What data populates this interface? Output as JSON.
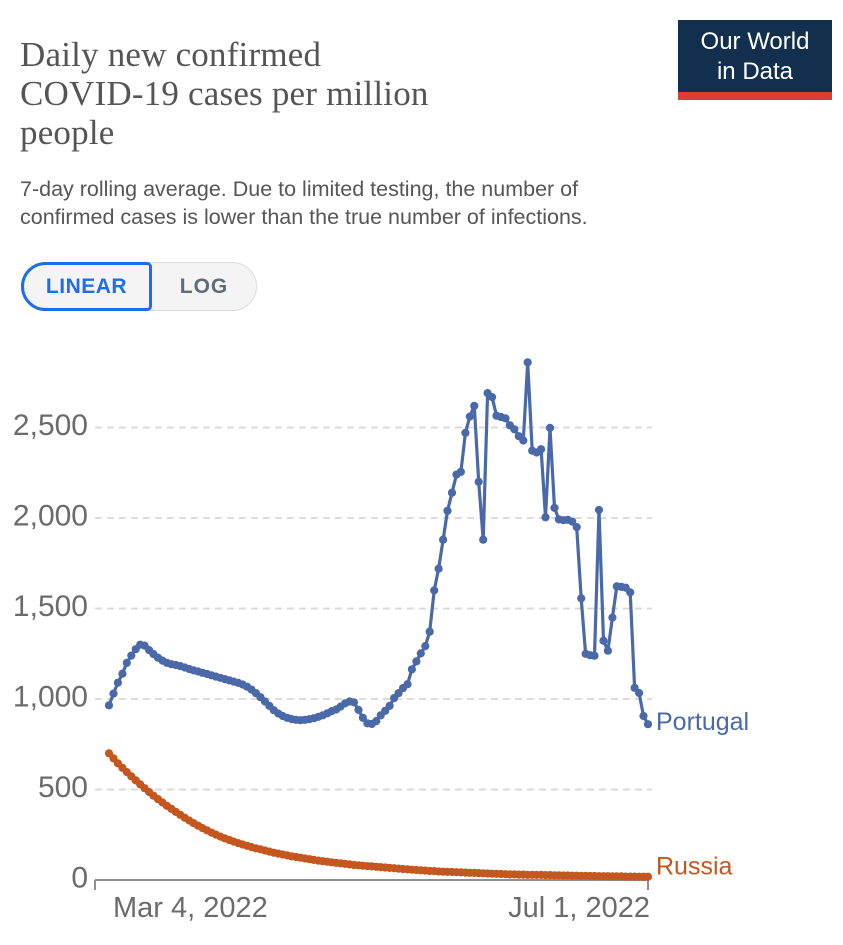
{
  "header": {
    "title_lines": [
      "Daily new confirmed",
      "COVID-19 cases per million",
      "people"
    ],
    "subtitle_lines": [
      "7-day rolling average. Due to limited testing, the number of",
      "confirmed cases is lower than the true number of infections."
    ],
    "logo": {
      "line1": "Our World",
      "line2": "in Data",
      "bg_color": "#12304e",
      "stripe_color": "#dc3e32"
    }
  },
  "toggle": {
    "linear_label": "LINEAR",
    "log_label": "LOG",
    "active": "LINEAR",
    "active_color": "#1f6de8",
    "inactive_text_color": "#5f6b7a"
  },
  "chart_data": {
    "type": "line",
    "title": "Daily new confirmed COVID-19 cases per million people",
    "subtitle": "7-day rolling average. Due to limited testing, the number of confirmed cases is lower than the true number of infections.",
    "frequency": "daily",
    "x_start": "Mar 4, 2022",
    "x_end": "Jul 1, 2022",
    "x_tick_labels": [
      "Mar 4, 2022",
      "Jul 1, 2022"
    ],
    "y_ticks": [
      0,
      500,
      1000,
      1500,
      2000,
      2500
    ],
    "y_tick_labels": [
      "0",
      "500",
      "1,000",
      "1,500",
      "2,000",
      "2,500"
    ],
    "ylim": [
      0,
      2900
    ],
    "grid": "horizontal-dashed",
    "grid_color": "#d7d7d7",
    "axis_color": "#8f8f8f",
    "tick_label_color": "#6b6b6b",
    "legend_position": "line-end-labels",
    "series": [
      {
        "name": "Portugal",
        "color": "#4a69a8",
        "label_dy": -2,
        "values": [
          965,
          1030,
          1090,
          1140,
          1200,
          1240,
          1275,
          1300,
          1295,
          1270,
          1248,
          1228,
          1212,
          1200,
          1192,
          1188,
          1182,
          1174,
          1166,
          1158,
          1152,
          1145,
          1138,
          1131,
          1124,
          1117,
          1110,
          1103,
          1096,
          1089,
          1080,
          1068,
          1052,
          1032,
          1010,
          986,
          962,
          938,
          920,
          906,
          896,
          889,
          885,
          883,
          885,
          889,
          894,
          901,
          910,
          921,
          933,
          942,
          958,
          976,
          986,
          982,
          940,
          896,
          866,
          862,
          878,
          910,
          935,
          962,
          1005,
          1032,
          1060,
          1082,
          1164,
          1208,
          1252,
          1292,
          1372,
          1600,
          1720,
          1880,
          2040,
          2140,
          2240,
          2255,
          2470,
          2560,
          2620,
          2200,
          1880,
          2690,
          2668,
          2565,
          2558,
          2550,
          2512,
          2490,
          2452,
          2428,
          2860,
          2372,
          2362,
          2380,
          2004,
          2498,
          2056,
          1992,
          1988,
          1990,
          1980,
          1950,
          1556,
          1250,
          1242,
          1239,
          2044,
          1322,
          1267,
          1450,
          1622,
          1620,
          1615,
          1589,
          1062,
          1033,
          906,
          861
        ]
      },
      {
        "name": "Russia",
        "color": "#c4571f",
        "label_dy": -10,
        "values": [
          700,
          672,
          645,
          620,
          596,
          573,
          550,
          528,
          507,
          486,
          466,
          447,
          428,
          410,
          393,
          376,
          360,
          344,
          329,
          314,
          300,
          287,
          274,
          262,
          251,
          240,
          230,
          221,
          212,
          204,
          196,
          189,
          182,
          175,
          169,
          163,
          157,
          151,
          146,
          141,
          136,
          131,
          127,
          123,
          119,
          115,
          111,
          107,
          104,
          101,
          98,
          95,
          92,
          89,
          86,
          83,
          81,
          79,
          77,
          75,
          73,
          71,
          69,
          67,
          65,
          63,
          61,
          59,
          57,
          55,
          53,
          52,
          50,
          49,
          47,
          46,
          45,
          44,
          43,
          42,
          41,
          40,
          39,
          38,
          37,
          36,
          35,
          34,
          33,
          32,
          31,
          31,
          30,
          30,
          29,
          29,
          28,
          28,
          27,
          27,
          26,
          26,
          25,
          25,
          24,
          24,
          23,
          23,
          22,
          22,
          21,
          21,
          21,
          20,
          20,
          20,
          19,
          19,
          19,
          18,
          18,
          18
        ]
      }
    ]
  }
}
